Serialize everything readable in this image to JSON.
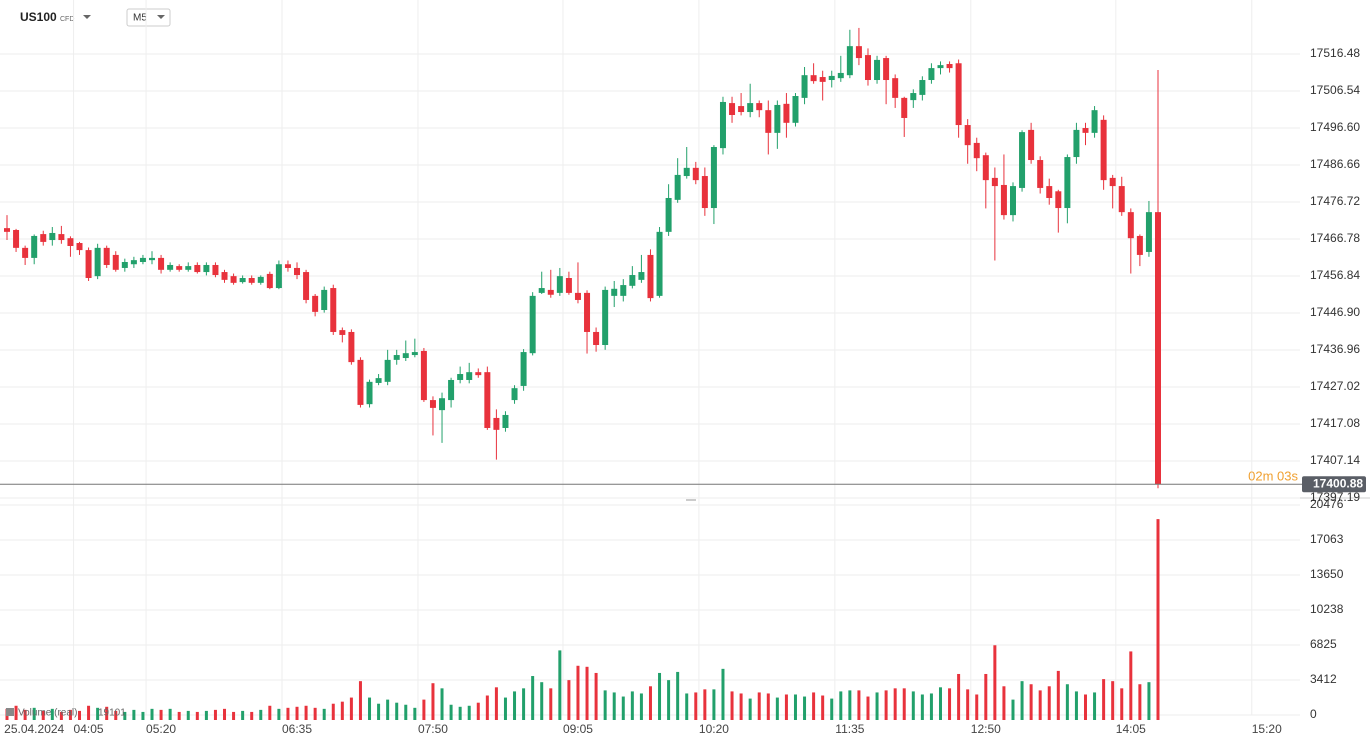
{
  "chart_data": {
    "type": "candlestick",
    "symbol": "US100",
    "instrument_type": "CFD",
    "timeframe": "M5",
    "up_color": "#22a06b",
    "down_color": "#e8323c",
    "grid": true,
    "countdown": "02m 03s",
    "volume_label": "Volume (real)",
    "ylim": [
      17396.65,
      17531.0
    ],
    "yticks": [
      17516.48,
      17506.54,
      {
        "value": 17496.6,
        "label": "17496.60"
      },
      17486.66,
      17476.72,
      17466.78,
      17456.84,
      {
        "value": 17446.9,
        "label": "17446.90"
      },
      17436.96,
      17427.02,
      17417.08,
      17407.14,
      17397.19
    ],
    "volume_ylim": [
      0,
      21160
    ],
    "volume_yticks": [
      0,
      3412,
      6825,
      10238,
      13650,
      17063,
      20476
    ],
    "categories": [
      null,
      null,
      null,
      "25.04.2024",
      null,
      null,
      null,
      null,
      null,
      "04:05",
      null,
      null,
      null,
      null,
      null,
      null,
      null,
      "05:20",
      null,
      null,
      null,
      null,
      null,
      null,
      null,
      null,
      null,
      null,
      null,
      null,
      null,
      null,
      "06:35",
      null,
      null,
      null,
      null,
      null,
      null,
      null,
      null,
      null,
      null,
      null,
      null,
      null,
      null,
      "07:50",
      null,
      null,
      null,
      null,
      null,
      null,
      null,
      null,
      null,
      null,
      null,
      null,
      null,
      null,
      null,
      "09:05",
      null,
      null,
      null,
      null,
      null,
      null,
      null,
      null,
      null,
      null,
      null,
      null,
      null,
      null,
      "10:20",
      null,
      null,
      null,
      null,
      null,
      null,
      null,
      null,
      null,
      null,
      null,
      null,
      null,
      null,
      "11:35",
      null,
      null,
      null,
      null,
      null,
      null,
      null,
      null,
      null,
      null,
      null,
      null,
      null,
      null,
      "12:50",
      null,
      null,
      null,
      null,
      null,
      null,
      null,
      null,
      null,
      null,
      null,
      null,
      null,
      null,
      null,
      "14:05",
      null,
      null,
      null,
      null,
      null,
      null,
      null,
      null,
      null,
      null,
      null,
      null,
      null,
      null,
      "15:20"
    ],
    "open": [
      17469.7,
      17469.2,
      17464.4,
      17461.7,
      17468.1,
      17466.5,
      17468.1,
      17467.0,
      17465.7,
      17463.8,
      17456.8,
      17464.4,
      17462.5,
      17459.0,
      17460.0,
      17460.6,
      17461.1,
      17461.7,
      17458.5,
      17459.5,
      17458.5,
      17459.8,
      17457.9,
      17459.8,
      17457.9,
      17456.8,
      17455.2,
      17456.3,
      17455.0,
      17457.4,
      17453.6,
      17460.0,
      17459.0,
      17457.9,
      17451.5,
      17447.7,
      17453.6,
      17442.3,
      17441.8,
      17434.3,
      17422.4,
      17428.1,
      17428.4,
      17434.3,
      17434.8,
      17435.6,
      17436.7,
      17423.5,
      17420.8,
      17423.5,
      17428.9,
      17428.9,
      17431.0,
      17431.0,
      17418.7,
      17416.0,
      17423.5,
      17427.3,
      17436.1,
      17452.3,
      17453.1,
      17452.3,
      17456.3,
      17452.3,
      17452.3,
      17441.8,
      17438.3,
      17451.5,
      17451.5,
      17454.2,
      17455.8,
      17462.5,
      17451.5,
      17468.7,
      17477.3,
      17483.7,
      17485.9,
      17483.7,
      17475.1,
      17491.2,
      17503.3,
      17502.5,
      17500.9,
      17503.3,
      17501.4,
      17495.3,
      17503.1,
      17498.0,
      17504.7,
      17510.8,
      17510.3,
      17509.5,
      17510.0,
      17510.8,
      17518.6,
      17516.2,
      17509.5,
      17515.4,
      17510.0,
      17504.7,
      17504.1,
      17505.5,
      17509.5,
      17512.7,
      17513.8,
      17514.0,
      17497.4,
      17492.6,
      17489.3,
      17483.2,
      17481.3,
      17473.2,
      17480.5,
      17496.1,
      17488.0,
      17481.0,
      17479.6,
      17475.1,
      17488.8,
      17496.6,
      17495.3,
      17498.8,
      17483.2,
      17481.0,
      17474.0,
      17467.6,
      17463.3,
      17474.0,
      null,
      null,
      null,
      null,
      null,
      null,
      null,
      null,
      null,
      null,
      null,
      null
    ],
    "high": [
      17473.2,
      17469.5,
      17465.0,
      17468.0,
      17469.0,
      17470.0,
      17470.3,
      17467.5,
      17466.0,
      17464.5,
      17465.5,
      17465.0,
      17463.5,
      17461.5,
      17462.0,
      17462.5,
      17463.5,
      17462.5,
      17460.5,
      17460.0,
      17460.5,
      17460.5,
      17460.5,
      17460.5,
      17458.5,
      17457.5,
      17457.0,
      17457.0,
      17457.0,
      17458.0,
      17461.0,
      17461.0,
      17460.5,
      17458.5,
      17452.0,
      17454.0,
      17454.5,
      17443.0,
      17442.5,
      17435.0,
      17429.0,
      17430.5,
      17437.0,
      17437.0,
      17439.5,
      17440.0,
      17437.5,
      17424.5,
      17425.5,
      17429.5,
      17432.5,
      17433.5,
      17432.0,
      17432.5,
      17421.0,
      17420.5,
      17427.5,
      17437.2,
      17452.5,
      17458.0,
      17458.5,
      17459.0,
      17458.0,
      17460.5,
      17453.0,
      17443.0,
      17454.0,
      17455.5,
      17456.0,
      17459.5,
      17462.5,
      17464.0,
      17470.0,
      17481.5,
      17488.5,
      17491.5,
      17487.5,
      17486.0,
      17492.0,
      17505.0,
      17505.0,
      17506.0,
      17508.5,
      17504.0,
      17504.0,
      17504.0,
      17506.0,
      17506.0,
      17513.0,
      17514.0,
      17512.0,
      17512.0,
      17516.0,
      17523.0,
      17523.5,
      17518.0,
      17516.0,
      17516.0,
      17511.0,
      17505.0,
      17507.0,
      17510.5,
      17514.0,
      17514.5,
      17514.5,
      17515.0,
      17499.0,
      17494.0,
      17490.0,
      17486.0,
      17489.5,
      17482.0,
      17496.0,
      17498.0,
      17489.0,
      17483.0,
      17480.0,
      17489.5,
      17498.0,
      17498.0,
      17502.5,
      17500.0,
      17484.0,
      17483.5,
      17475.0,
      17468.0,
      17477.0,
      17512.2,
      null,
      null,
      null,
      null,
      null,
      null,
      null,
      null,
      null,
      null,
      null,
      null
    ],
    "low": [
      17466.5,
      17463.3,
      17459.8,
      17460.0,
      17465.0,
      17465.0,
      17465.5,
      17462.0,
      17462.5,
      17455.5,
      17456.0,
      17459.0,
      17458.0,
      17458.0,
      17459.0,
      17460.0,
      17460.0,
      17457.5,
      17458.0,
      17458.0,
      17458.0,
      17457.5,
      17457.0,
      17456.5,
      17455.0,
      17454.5,
      17454.8,
      17454.5,
      17454.5,
      17453.3,
      17453.3,
      17458.0,
      17456.0,
      17449.5,
      17446.0,
      17447.0,
      17441.0,
      17439.0,
      17433.0,
      17421.5,
      17421.5,
      17427.5,
      17427.5,
      17433.0,
      17434.0,
      17435.0,
      17423.0,
      17414.0,
      17412.0,
      17421.5,
      17428.0,
      17428.0,
      17429.5,
      17415.5,
      17407.5,
      17415.0,
      17422.5,
      17426.0,
      17435.5,
      17452.0,
      17451.0,
      17451.5,
      17451.8,
      17449.5,
      17436.0,
      17436.5,
      17437.0,
      17448.5,
      17450.0,
      17453.5,
      17455.0,
      17450.0,
      17451.0,
      17467.6,
      17476.5,
      17483.0,
      17481.5,
      17473.0,
      17470.8,
      17489.5,
      17498.0,
      17500.0,
      17499.5,
      17499.5,
      17489.5,
      17491.0,
      17494.0,
      17497.0,
      17503.0,
      17508.5,
      17504.0,
      17507.5,
      17509.0,
      17510.0,
      17513.5,
      17508.0,
      17508.5,
      17503.0,
      17502.0,
      17494.2,
      17502.0,
      17504.0,
      17508.5,
      17511.0,
      17511.5,
      17494.0,
      17487.0,
      17485.0,
      17475.0,
      17461.0,
      17472.0,
      17471.5,
      17479.5,
      17487.0,
      17479.0,
      17476.0,
      17468.5,
      17471.0,
      17487.0,
      17492.0,
      17494.0,
      17480.0,
      17475.0,
      17473.0,
      17457.5,
      17459.5,
      17462.0,
      17399.8,
      null,
      null,
      null,
      null,
      null,
      null,
      null,
      null,
      null,
      null,
      null,
      null
    ],
    "close": [
      17468.7,
      17464.4,
      17461.7,
      17467.6,
      17466.0,
      17468.4,
      17466.5,
      17464.9,
      17463.8,
      17456.3,
      17464.4,
      17459.8,
      17458.5,
      17460.6,
      17461.1,
      17461.7,
      17461.7,
      17458.5,
      17459.8,
      17458.5,
      17459.5,
      17457.9,
      17459.8,
      17457.1,
      17455.8,
      17455.0,
      17456.3,
      17455.0,
      17456.6,
      17453.6,
      17460.0,
      17459.0,
      17457.1,
      17450.4,
      17447.2,
      17453.1,
      17441.8,
      17441.0,
      17433.7,
      17422.2,
      17428.4,
      17429.4,
      17434.3,
      17435.6,
      17436.1,
      17436.4,
      17423.5,
      17421.4,
      17424.0,
      17428.9,
      17430.5,
      17431.0,
      17430.2,
      17416.0,
      17415.5,
      17419.5,
      17426.7,
      17436.4,
      17451.5,
      17453.6,
      17451.8,
      17456.8,
      17452.3,
      17450.4,
      17441.8,
      17438.3,
      17453.1,
      17453.4,
      17454.4,
      17457.1,
      17457.9,
      17450.9,
      17468.7,
      17477.8,
      17484.0,
      17485.9,
      17482.6,
      17475.1,
      17491.5,
      17503.6,
      17500.1,
      17500.9,
      17503.3,
      17501.4,
      17495.3,
      17502.8,
      17498.0,
      17505.2,
      17510.8,
      17509.2,
      17509.0,
      17510.6,
      17511.4,
      17518.6,
      17515.4,
      17509.5,
      17514.9,
      17509.5,
      17504.7,
      17499.3,
      17506.0,
      17509.5,
      17512.7,
      17513.5,
      17512.7,
      17497.4,
      17492.0,
      17488.5,
      17482.6,
      17481.0,
      17473.2,
      17481.0,
      17495.5,
      17488.0,
      17480.5,
      17477.8,
      17475.1,
      17488.8,
      17496.1,
      17495.3,
      17501.4,
      17482.6,
      17481.0,
      17474.0,
      17467.0,
      17462.5,
      17474.0,
      17400.88,
      null,
      null,
      null,
      null,
      null,
      null,
      null,
      null,
      null,
      null,
      null,
      null
    ],
    "volume": [
      600,
      900,
      500,
      700,
      400,
      600,
      300,
      500,
      400,
      900,
      700,
      800,
      400,
      300,
      500,
      300,
      600,
      500,
      600,
      300,
      400,
      300,
      400,
      500,
      600,
      300,
      400,
      300,
      500,
      900,
      600,
      700,
      800,
      900,
      700,
      600,
      1100,
      1300,
      1700,
      3300,
      1700,
      1100,
      1500,
      1200,
      1000,
      700,
      1500,
      3100,
      2600,
      1000,
      800,
      900,
      1200,
      1900,
      2700,
      1700,
      2300,
      2600,
      3800,
      3200,
      2600,
      6300,
      3400,
      4800,
      4700,
      4100,
      2400,
      2200,
      1800,
      2300,
      2100,
      2800,
      4100,
      3400,
      4200,
      2100,
      2200,
      2500,
      2500,
      4500,
      2300,
      2100,
      1600,
      2200,
      2100,
      1700,
      2000,
      2000,
      1800,
      2200,
      1900,
      1600,
      2300,
      2400,
      2400,
      1800,
      2200,
      2400,
      2600,
      2600,
      2300,
      2000,
      2100,
      2700,
      2600,
      4000,
      2500,
      2000,
      4000,
      6800,
      2800,
      1500,
      3300,
      3000,
      2400,
      2800,
      4300,
      3000,
      2300,
      2000,
      2200,
      3500,
      3300,
      2600,
      6200,
      3000,
      3200,
      19101,
      null,
      null,
      null,
      null,
      null,
      null,
      null,
      null,
      null,
      null,
      null,
      null
    ]
  }
}
